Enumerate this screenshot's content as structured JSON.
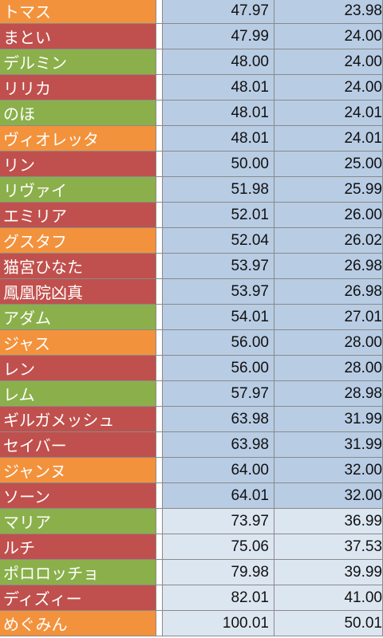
{
  "colors": {
    "orange": "#f3923c",
    "red": "#c0504d",
    "green": "#8bb04b",
    "blue_value": "#b8cce4",
    "light_value": "#dce6f1"
  },
  "rows": [
    {
      "name": "トマス",
      "color": "orange",
      "v1": "47.97",
      "v2": "23.98",
      "shade": "blue"
    },
    {
      "name": "まとい",
      "color": "red",
      "v1": "47.99",
      "v2": "24.00",
      "shade": "blue"
    },
    {
      "name": "デルミン",
      "color": "green",
      "v1": "48.00",
      "v2": "24.00",
      "shade": "blue"
    },
    {
      "name": "リリカ",
      "color": "red",
      "v1": "48.01",
      "v2": "24.00",
      "shade": "blue"
    },
    {
      "name": "のほ",
      "color": "green",
      "v1": "48.01",
      "v2": "24.01",
      "shade": "blue"
    },
    {
      "name": "ヴィオレッタ",
      "color": "orange",
      "v1": "48.01",
      "v2": "24.01",
      "shade": "blue"
    },
    {
      "name": "リン",
      "color": "red",
      "v1": "50.00",
      "v2": "25.00",
      "shade": "blue"
    },
    {
      "name": "リヴァイ",
      "color": "green",
      "v1": "51.98",
      "v2": "25.99",
      "shade": "blue"
    },
    {
      "name": "エミリア",
      "color": "red",
      "v1": "52.01",
      "v2": "26.00",
      "shade": "blue"
    },
    {
      "name": "グスタフ",
      "color": "orange",
      "v1": "52.04",
      "v2": "26.02",
      "shade": "blue"
    },
    {
      "name": "猫宮ひなた",
      "color": "red",
      "v1": "53.97",
      "v2": "26.98",
      "shade": "blue"
    },
    {
      "name": "鳳凰院凶真",
      "color": "red",
      "v1": "53.97",
      "v2": "26.98",
      "shade": "blue"
    },
    {
      "name": "アダム",
      "color": "green",
      "v1": "54.01",
      "v2": "27.01",
      "shade": "blue"
    },
    {
      "name": "ジャス",
      "color": "orange",
      "v1": "56.00",
      "v2": "28.00",
      "shade": "blue"
    },
    {
      "name": "レン",
      "color": "red",
      "v1": "56.00",
      "v2": "28.00",
      "shade": "blue"
    },
    {
      "name": "レム",
      "color": "green",
      "v1": "57.97",
      "v2": "28.98",
      "shade": "blue"
    },
    {
      "name": "ギルガメッシュ",
      "color": "red",
      "v1": "63.98",
      "v2": "31.99",
      "shade": "blue"
    },
    {
      "name": "セイバー",
      "color": "red",
      "v1": "63.98",
      "v2": "31.99",
      "shade": "blue"
    },
    {
      "name": "ジャンヌ",
      "color": "orange",
      "v1": "64.00",
      "v2": "32.00",
      "shade": "blue"
    },
    {
      "name": "ソーン",
      "color": "red",
      "v1": "64.01",
      "v2": "32.00",
      "shade": "blue"
    },
    {
      "name": "マリア",
      "color": "green",
      "v1": "73.97",
      "v2": "36.99",
      "shade": "light"
    },
    {
      "name": "ルチ",
      "color": "red",
      "v1": "75.06",
      "v2": "37.53",
      "shade": "light"
    },
    {
      "name": "ポロロッチョ",
      "color": "green",
      "v1": "79.98",
      "v2": "39.99",
      "shade": "light"
    },
    {
      "name": "ディズィー",
      "color": "red",
      "v1": "82.01",
      "v2": "41.00",
      "shade": "light"
    },
    {
      "name": "めぐみん",
      "color": "orange",
      "v1": "100.01",
      "v2": "50.01",
      "shade": "light"
    }
  ]
}
